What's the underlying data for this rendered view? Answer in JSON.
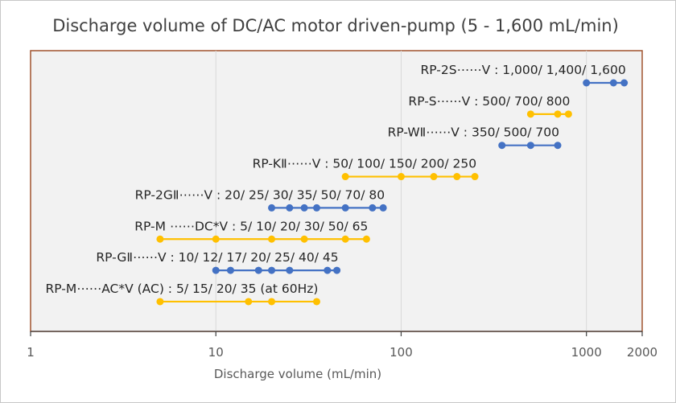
{
  "chart_data": {
    "type": "range-dot",
    "title": "Discharge volume of DC/AC motor driven-pump (5 - 1,600 mL/min)",
    "xlabel": "Discharge volume (mL/min)",
    "ylabel": "",
    "x_scale": "log",
    "xlim": [
      1,
      2000
    ],
    "x_ticks": [
      1,
      10,
      100,
      1000,
      2000
    ],
    "x_tick_labels": [
      "1",
      "10",
      "100",
      "1000",
      "2000"
    ],
    "grid": "vertical gridlines at 10, 100, 1000",
    "legend": "none",
    "colors": {
      "blue": "#4472C4",
      "orange": "#FFC000",
      "plot_bg": "#F2F2F2",
      "plot_border": "#A0522D"
    },
    "series": [
      {
        "label": "RP-2S⋯⋯V : 1,000/ 1,400/ 1,600",
        "color": "blue",
        "values": [
          1000,
          1400,
          1600
        ]
      },
      {
        "label": "RP-S⋯⋯V : 500/ 700/ 800",
        "color": "orange",
        "values": [
          500,
          700,
          800
        ]
      },
      {
        "label": "RP-WⅡ⋯⋯V : 350/ 500/ 700",
        "color": "blue",
        "values": [
          350,
          500,
          700
        ]
      },
      {
        "label": "RP-KⅡ⋯⋯V : 50/ 100/ 150/ 200/ 250",
        "color": "orange",
        "values": [
          50,
          100,
          150,
          200,
          250
        ]
      },
      {
        "label": "RP-2GⅡ⋯⋯V : 20/ 25/ 30/ 35/ 50/ 70/ 80",
        "color": "blue",
        "values": [
          20,
          25,
          30,
          35,
          50,
          70,
          80
        ]
      },
      {
        "label": "RP-M ⋯⋯DC*V : 5/ 10/ 20/ 30/ 50/ 65",
        "color": "orange",
        "values": [
          5,
          10,
          20,
          30,
          50,
          65
        ]
      },
      {
        "label": "RP-GⅡ⋯⋯V : 10/ 12/ 17/ 20/ 25/ 40/ 45",
        "color": "blue",
        "values": [
          10,
          12,
          17,
          20,
          25,
          40,
          45
        ]
      },
      {
        "label": "RP-M⋯⋯AC*V (AC) : 5/ 15/ 20/ 35 (at 60Hz)",
        "color": "orange",
        "values": [
          5,
          15,
          20,
          35
        ]
      }
    ]
  }
}
